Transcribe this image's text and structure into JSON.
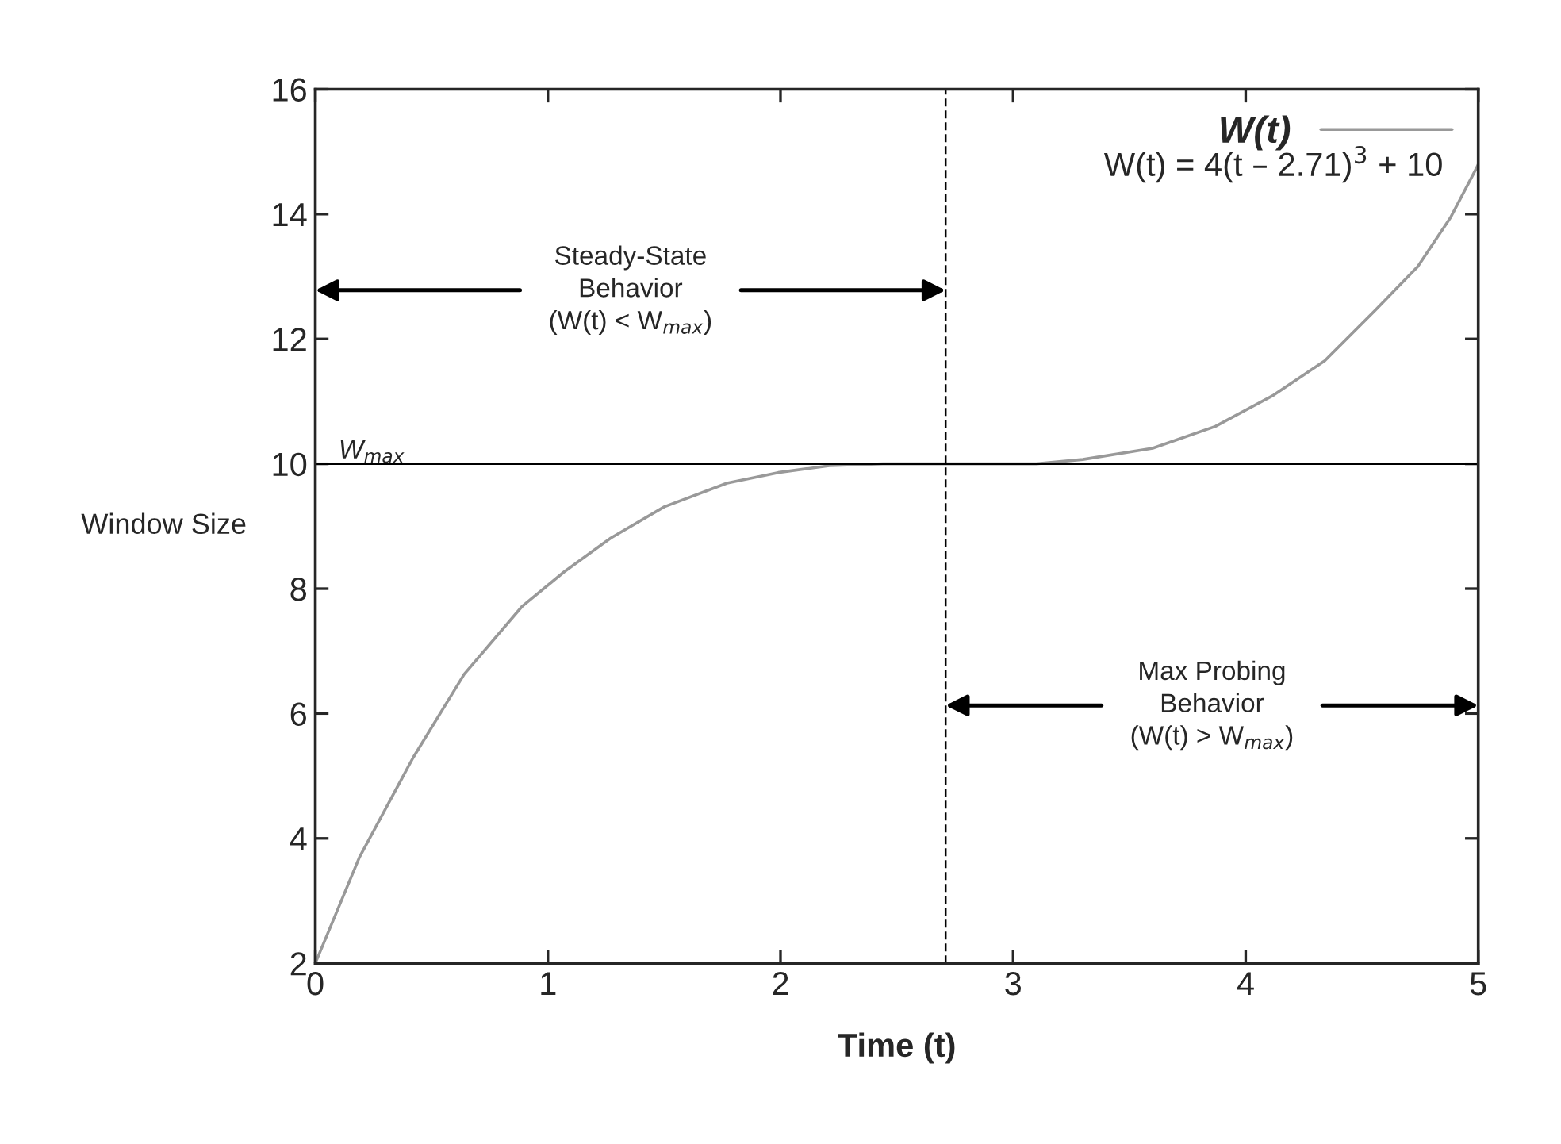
{
  "chart_data": {
    "type": "line",
    "xlabel": "Time (t)",
    "ylabel": "Window Size",
    "series": [
      {
        "name": "W(t)",
        "color": "#999999",
        "x": [
          0,
          0.19,
          0.42,
          0.64,
          0.89,
          1.07,
          1.27,
          1.5,
          1.77,
          1.99,
          2.21,
          2.44,
          2.71,
          3.1,
          3.3,
          3.6,
          3.87,
          4.12,
          4.34,
          4.56,
          4.74,
          4.88,
          4.99,
          5
        ],
        "values": [
          2,
          3.7,
          5.29,
          6.63,
          7.72,
          8.27,
          8.81,
          9.31,
          9.69,
          9.86,
          9.97,
          10,
          10,
          10,
          10.07,
          10.25,
          10.6,
          11.1,
          11.65,
          12.47,
          13.16,
          13.94,
          14.72,
          14.8
        ]
      }
    ],
    "xlim": [
      0,
      5
    ],
    "xticks": [
      0,
      1,
      2,
      3,
      4,
      5
    ],
    "ylim": [
      2,
      16
    ],
    "yticks": [
      2,
      4,
      6,
      8,
      10,
      12,
      14,
      16
    ],
    "ref_lines": [
      {
        "axis": "y",
        "value": 10,
        "label": "W$_{max}$",
        "color": "#000000",
        "line_style": "solid"
      },
      {
        "axis": "x",
        "value": 2.71,
        "color": "#000000",
        "line_style": "dashed"
      }
    ],
    "annotations": [
      "W(t) = 4(t – 2.71)$^{3}$ + 10",
      "Steady-State\nBehavior\n(W(t) < W$_{max}$)",
      "Max Probing\nBehavior\n(W(t) > W$_{max}$)"
    ],
    "grid": false,
    "legend": "top right",
    "marker": "none",
    "line_style": "solid"
  }
}
